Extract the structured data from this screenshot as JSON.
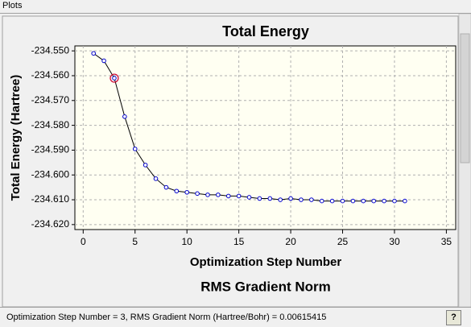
{
  "window_title": "Plots",
  "chart_data": {
    "type": "line",
    "title": "Total Energy",
    "x_label": "Optimization Step Number",
    "y_label": "Total Energy (Hartree)",
    "x": [
      1,
      2,
      3,
      4,
      5,
      6,
      7,
      8,
      9,
      10,
      11,
      12,
      13,
      14,
      15,
      16,
      17,
      18,
      19,
      20,
      21,
      22,
      23,
      24,
      25,
      26,
      27,
      28,
      29,
      30,
      31
    ],
    "values": [
      -234.551,
      -234.554,
      -234.561,
      -234.5765,
      -234.5895,
      -234.596,
      -234.6015,
      -234.605,
      -234.6065,
      -234.607,
      -234.6075,
      -234.608,
      -234.608,
      -234.6085,
      -234.6085,
      -234.609,
      -234.6095,
      -234.6095,
      -234.61,
      -234.6095,
      -234.61,
      -234.61,
      -234.6105,
      -234.6105,
      -234.6105,
      -234.6105,
      -234.6105,
      -234.6105,
      -234.6105,
      -234.6105,
      -234.6105
    ],
    "color": "#0000cc",
    "line_color": "#000000",
    "selected_x": 3,
    "xlim": [
      -0.8,
      35.9
    ],
    "xticks": [
      0,
      5,
      10,
      15,
      20,
      25,
      30,
      35
    ],
    "ylim": [
      -234.622,
      -234.548
    ],
    "yticks": [
      {
        "value": -234.55,
        "label": "-234.550"
      },
      {
        "value": -234.56,
        "label": "-234.560"
      },
      {
        "value": -234.57,
        "label": "-234.570"
      },
      {
        "value": -234.58,
        "label": "-234.580"
      },
      {
        "value": -234.59,
        "label": "-234.590"
      },
      {
        "value": -234.6,
        "label": "-234.600"
      },
      {
        "value": -234.61,
        "label": "-234.610"
      },
      {
        "value": -234.62,
        "label": "-234.620"
      }
    ],
    "grid": true
  },
  "next_chart_title": "RMS Gradient Norm",
  "status": "Optimization Step Number = 3, RMS Gradient Norm (Hartree/Bohr) = 0.00615415",
  "help_icon": "?"
}
